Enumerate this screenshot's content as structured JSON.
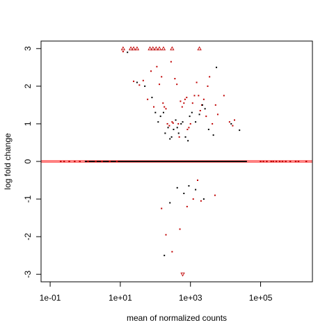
{
  "chart_data": {
    "type": "scatter",
    "title": "",
    "xlabel": "mean of normalized counts",
    "ylabel": "log fold change",
    "x_scale": "log",
    "xlim": [
      0.055,
      3000000
    ],
    "ylim": [
      -3.2,
      3.2
    ],
    "x_ticks": [
      {
        "value": 0.1,
        "label": "1e-01"
      },
      {
        "value": 10,
        "label": "1e+01"
      },
      {
        "value": 1000,
        "label": "1e+03"
      },
      {
        "value": 100000,
        "label": "1e+05"
      }
    ],
    "y_ticks": [
      {
        "value": -3,
        "label": "-3"
      },
      {
        "value": -2,
        "label": "-2"
      },
      {
        "value": -1,
        "label": "-1"
      },
      {
        "value": 0,
        "label": "0"
      },
      {
        "value": 1,
        "label": "1"
      },
      {
        "value": 2,
        "label": "2"
      },
      {
        "value": 3,
        "label": "3"
      }
    ],
    "grid": false,
    "legend": "none",
    "colors": {
      "baseline": "#ff8080",
      "significant": "#c00000",
      "not_significant": "#000000",
      "axis": "#000000"
    },
    "baseline_y": 0,
    "series": [
      {
        "marker": "dot",
        "color": "#c00000",
        "points": [
          [
            12,
            2.92
          ],
          [
            24,
            2.13
          ],
          [
            35,
            2.03
          ],
          [
            45,
            2.15
          ],
          [
            60,
            1.65
          ],
          [
            75,
            2.4
          ],
          [
            90,
            1.45
          ],
          [
            110,
            2.52
          ],
          [
            130,
            2.05
          ],
          [
            150,
            2.25
          ],
          [
            165,
            1.55
          ],
          [
            180,
            1.45
          ],
          [
            200,
            1.4
          ],
          [
            220,
            1.0
          ],
          [
            250,
            0.95
          ],
          [
            280,
            2.65
          ],
          [
            300,
            1.05
          ],
          [
            320,
            1.02
          ],
          [
            360,
            2.2
          ],
          [
            410,
            2.05
          ],
          [
            450,
            1.0
          ],
          [
            480,
            0.65
          ],
          [
            520,
            1.6
          ],
          [
            580,
            1.45
          ],
          [
            650,
            1.55
          ],
          [
            700,
            1.65
          ],
          [
            780,
            1.7
          ],
          [
            820,
            0.85
          ],
          [
            900,
            0.9
          ],
          [
            1000,
            1.0
          ],
          [
            1150,
            1.55
          ],
          [
            1300,
            1.75
          ],
          [
            1500,
            2.1
          ],
          [
            1700,
            1.75
          ],
          [
            1900,
            1.35
          ],
          [
            2100,
            1.5
          ],
          [
            2400,
            1.65
          ],
          [
            2800,
            1.2
          ],
          [
            3100,
            2.0
          ],
          [
            3500,
            2.25
          ],
          [
            4200,
            1.0
          ],
          [
            5200,
            1.5
          ],
          [
            6000,
            1.25
          ],
          [
            9000,
            1.75
          ],
          [
            13000,
            1.05
          ],
          [
            16000,
            0.95
          ],
          [
            18000,
            1.1
          ],
          [
            150,
            -1.25
          ],
          [
            200,
            -1.95
          ],
          [
            300,
            -2.4
          ],
          [
            500,
            -1.8
          ],
          [
            800,
            -1.2
          ],
          [
            1200,
            -1.0
          ],
          [
            1600,
            -0.5
          ],
          [
            2000,
            -1.05
          ],
          [
            5000,
            -0.9
          ]
        ]
      },
      {
        "marker": "dot",
        "color": "#000000",
        "points": [
          [
            16,
            2.9
          ],
          [
            30,
            2.1
          ],
          [
            50,
            2.0
          ],
          [
            80,
            1.7
          ],
          [
            100,
            1.3
          ],
          [
            120,
            1.05
          ],
          [
            140,
            1.2
          ],
          [
            170,
            1.3
          ],
          [
            190,
            0.75
          ],
          [
            230,
            0.9
          ],
          [
            260,
            0.6
          ],
          [
            290,
            0.65
          ],
          [
            330,
            0.85
          ],
          [
            380,
            1.1
          ],
          [
            420,
            0.9
          ],
          [
            460,
            0.75
          ],
          [
            540,
            1.0
          ],
          [
            600,
            1.05
          ],
          [
            720,
            0.65
          ],
          [
            850,
            0.55
          ],
          [
            950,
            1.2
          ],
          [
            1100,
            1.3
          ],
          [
            1400,
            1.05
          ],
          [
            1800,
            1.25
          ],
          [
            2200,
            1.5
          ],
          [
            2600,
            1.4
          ],
          [
            3300,
            0.85
          ],
          [
            4500,
            0.7
          ],
          [
            14500,
            1.0
          ],
          [
            25000,
            0.83
          ],
          [
            5500,
            2.5
          ],
          [
            180,
            -2.5
          ],
          [
            260,
            -1.1
          ],
          [
            420,
            -0.7
          ],
          [
            650,
            -0.85
          ],
          [
            900,
            -0.65
          ],
          [
            1400,
            -0.75
          ],
          [
            2400,
            -1.0
          ]
        ]
      },
      {
        "marker": "triangle-up",
        "color": "#c00000",
        "points": [
          [
            12,
            3.0
          ],
          [
            20,
            3.0
          ],
          [
            24,
            3.0
          ],
          [
            30,
            3.0
          ],
          [
            70,
            3.0
          ],
          [
            85,
            3.0
          ],
          [
            105,
            3.0
          ],
          [
            130,
            3.0
          ],
          [
            170,
            3.0
          ],
          [
            300,
            3.0
          ],
          [
            1800,
            3.0
          ]
        ]
      },
      {
        "marker": "triangle-down",
        "color": "#c00000",
        "points": [
          [
            600,
            -3.0
          ]
        ]
      },
      {
        "marker": "zero-red",
        "color": "#c00000",
        "points": [
          [
            0.2,
            0
          ],
          [
            0.25,
            0
          ],
          [
            0.35,
            0
          ],
          [
            0.5,
            0
          ],
          [
            0.7,
            0
          ],
          [
            1.2,
            0
          ],
          [
            2,
            0
          ],
          [
            3,
            0
          ],
          [
            5,
            0
          ],
          [
            8,
            0
          ],
          [
            100000,
            0
          ],
          [
            120000,
            0
          ],
          [
            150000,
            0
          ],
          [
            200000,
            0
          ],
          [
            230000,
            0
          ],
          [
            280000,
            0
          ],
          [
            350000,
            0
          ],
          [
            420000,
            0
          ],
          [
            520000,
            0
          ],
          [
            700000,
            0
          ],
          [
            1000000,
            0
          ],
          [
            1200000,
            0
          ],
          [
            2000000,
            0
          ]
        ]
      }
    ]
  }
}
